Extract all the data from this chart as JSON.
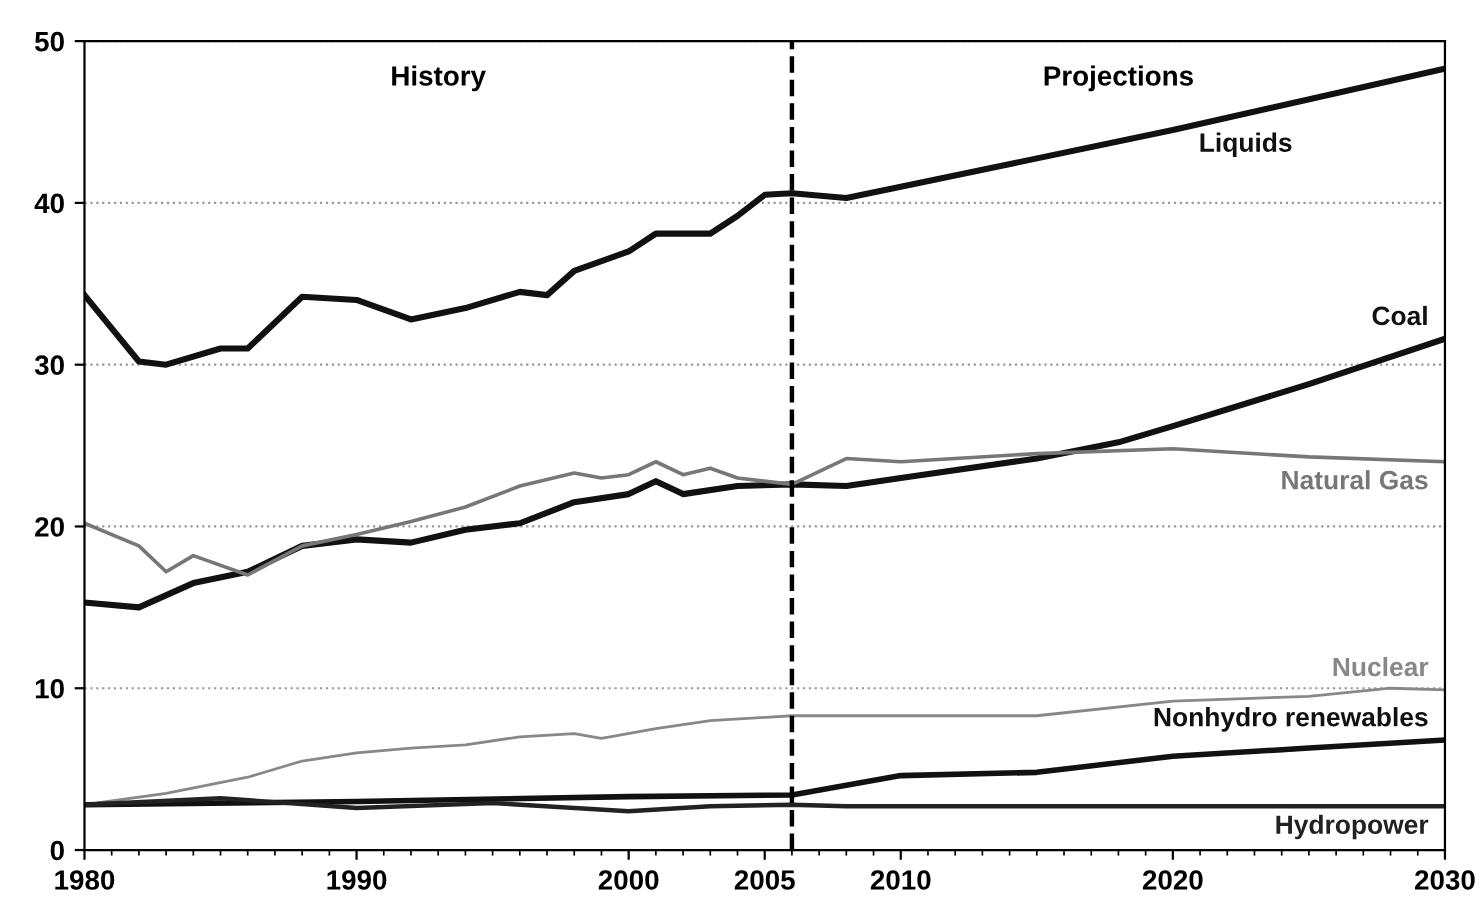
{
  "chart_data": {
    "type": "line",
    "annotations": [
      "History",
      "Projections"
    ],
    "xlim": [
      1980,
      2030
    ],
    "xticks": [
      1980,
      1990,
      2000,
      2005,
      2010,
      2020,
      2030
    ],
    "ylim": [
      0,
      50
    ],
    "yticks": [
      0,
      10,
      20,
      30,
      40,
      50
    ],
    "grid": "y",
    "legend": false,
    "line_style": "solid",
    "ref_lines": [
      {
        "axis": "x",
        "value": 2006,
        "color": "#000000",
        "line_style": "dashed"
      }
    ],
    "series": [
      {
        "name": "Liquids",
        "color": "#111111",
        "x": [
          1980,
          1982,
          1983,
          1985,
          1986,
          1988,
          1990,
          1992,
          1994,
          1996,
          1997,
          1998,
          2000,
          2001,
          2003,
          2004,
          2005,
          2006,
          2008,
          2010,
          2020,
          2030
        ],
        "values": [
          34.3,
          30.2,
          30,
          31,
          31,
          34.2,
          34,
          32.8,
          33.5,
          34.5,
          34.3,
          35.8,
          37,
          38.1,
          38.1,
          39.2,
          40.5,
          40.6,
          40.3,
          41,
          44.5,
          48.3
        ]
      },
      {
        "name": "Coal",
        "color": "#111111",
        "x": [
          1980,
          1982,
          1984,
          1986,
          1988,
          1990,
          1992,
          1994,
          1996,
          1998,
          2000,
          2001,
          2002,
          2004,
          2006,
          2008,
          2010,
          2015,
          2018,
          2020,
          2025,
          2030
        ],
        "values": [
          15.3,
          15,
          16.5,
          17.2,
          18.8,
          19.2,
          19,
          19.8,
          20.2,
          21.5,
          22,
          22.8,
          22,
          22.5,
          22.6,
          22.5,
          23,
          24.2,
          25.2,
          26.2,
          28.8,
          31.6
        ]
      },
      {
        "name": "Natural Gas",
        "color": "#777777",
        "x": [
          1980,
          1982,
          1983,
          1984,
          1986,
          1988,
          1990,
          1992,
          1994,
          1996,
          1998,
          1999,
          2000,
          2001,
          2002,
          2003,
          2004,
          2006,
          2008,
          2010,
          2015,
          2020,
          2025,
          2030
        ],
        "values": [
          20.2,
          18.8,
          17.2,
          18.2,
          17,
          18.8,
          19.5,
          20.3,
          21.2,
          22.5,
          23.3,
          23,
          23.2,
          24,
          23.2,
          23.6,
          23,
          22.6,
          24.2,
          24,
          24.5,
          24.8,
          24.3,
          24
        ]
      },
      {
        "name": "Nuclear",
        "color": "#888888",
        "x": [
          1980,
          1983,
          1986,
          1988,
          1990,
          1992,
          1994,
          1996,
          1998,
          1999,
          2001,
          2003,
          2006,
          2015,
          2020,
          2025,
          2028,
          2030
        ],
        "values": [
          2.8,
          3.5,
          4.5,
          5.5,
          6,
          6.3,
          6.5,
          7,
          7.2,
          6.9,
          7.5,
          8,
          8.3,
          8.3,
          9.2,
          9.5,
          10,
          9.9
        ]
      },
      {
        "name": "Nonhydro renewables",
        "color": "#111111",
        "x": [
          1980,
          1990,
          2000,
          2006,
          2010,
          2015,
          2020,
          2025,
          2030
        ],
        "values": [
          2.8,
          3,
          3.3,
          3.4,
          4.6,
          4.8,
          5.8,
          6.3,
          6.8
        ]
      },
      {
        "name": "Hydropower",
        "color": "#222222",
        "x": [
          1980,
          1985,
          1990,
          1995,
          2000,
          2003,
          2006,
          2008,
          2015,
          2030
        ],
        "values": [
          2.8,
          3.2,
          2.6,
          2.9,
          2.4,
          2.7,
          2.8,
          2.7,
          2.7,
          2.7
        ]
      }
    ]
  }
}
